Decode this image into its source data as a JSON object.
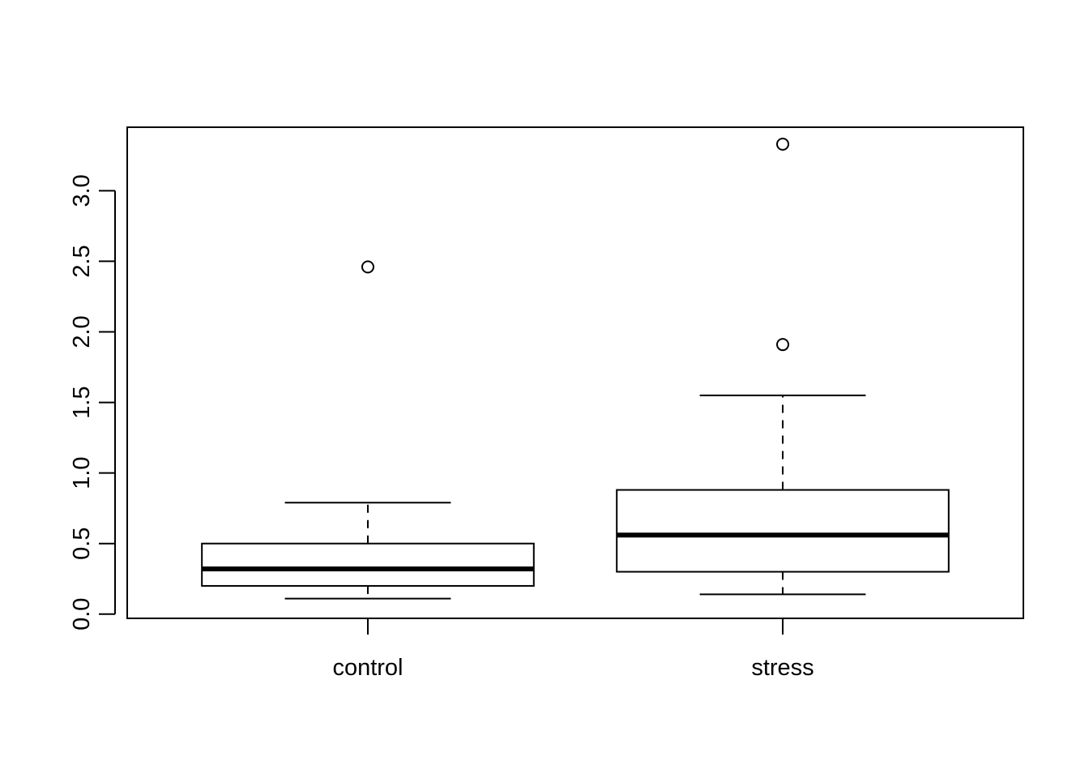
{
  "chart_data": {
    "type": "box",
    "title": "",
    "xlabel": "",
    "ylabel": "",
    "ylim": [
      -0.03,
      3.45
    ],
    "y_ticks": [
      "0.0",
      "0.5",
      "1.0",
      "1.5",
      "2.0",
      "2.5",
      "3.0"
    ],
    "y_tick_values": [
      0.0,
      0.5,
      1.0,
      1.5,
      2.0,
      2.5,
      3.0
    ],
    "grid": false,
    "categories": [
      "control",
      "stress"
    ],
    "boxes": [
      {
        "category": "control",
        "whisker_low": 0.11,
        "q1": 0.2,
        "median": 0.32,
        "q3": 0.5,
        "whisker_high": 0.79,
        "outliers": [
          2.46
        ]
      },
      {
        "category": "stress",
        "whisker_low": 0.14,
        "q1": 0.3,
        "median": 0.56,
        "q3": 0.88,
        "whisker_high": 1.55,
        "outliers": [
          1.91,
          3.33
        ]
      }
    ],
    "colors": {
      "stroke": "#000000",
      "box_fill": "#ffffff",
      "background": "#ffffff"
    }
  }
}
